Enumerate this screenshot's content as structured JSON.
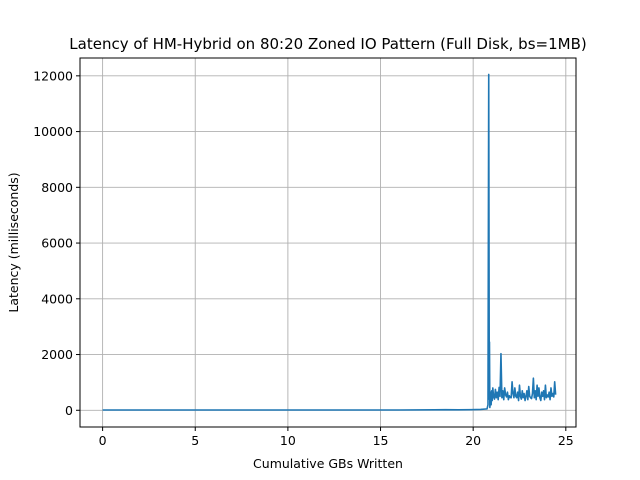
{
  "chart_data": {
    "type": "line",
    "title": "Latency of HM-Hybrid on 80:20 Zoned IO Pattern (Full Disk, bs=1MB)",
    "xlabel": "Cumulative GBs Written",
    "ylabel": "Latency (milliseconds)",
    "xlim": [
      -1.22,
      25.55
    ],
    "ylim": [
      -600,
      12640
    ],
    "xticks": [
      0,
      5,
      10,
      15,
      20,
      25
    ],
    "yticks": [
      0,
      2000,
      4000,
      6000,
      8000,
      10000,
      12000
    ],
    "grid": true,
    "series_color": "#1f77b4",
    "series": [
      {
        "x": [
          0,
          2,
          4,
          6,
          8,
          10,
          12,
          14,
          16,
          17.9,
          18.5,
          19.2,
          19.9,
          20.4,
          20.75,
          20.8,
          20.84,
          20.87,
          20.88,
          20.9,
          20.93,
          20.95,
          20.97,
          21.0,
          21.03,
          21.06,
          21.1,
          21.15,
          21.2,
          21.25,
          21.3,
          21.35,
          21.4,
          21.45,
          21.5,
          21.55,
          21.6,
          21.65,
          21.7,
          21.75,
          21.8,
          21.85,
          21.9,
          21.95,
          22.0,
          22.05,
          22.1,
          22.15,
          22.2,
          22.25,
          22.3,
          22.35,
          22.4,
          22.45,
          22.5,
          22.55,
          22.6,
          22.65,
          22.7,
          22.75,
          22.8,
          22.85,
          22.9,
          22.95,
          23.0,
          23.05,
          23.1,
          23.15,
          23.2,
          23.25,
          23.3,
          23.35,
          23.4,
          23.45,
          23.5,
          23.55,
          23.6,
          23.65,
          23.7,
          23.75,
          23.8,
          23.85,
          23.9,
          23.95,
          24.0,
          24.05,
          24.1,
          24.15,
          24.2,
          24.25,
          24.3,
          24.35,
          24.4,
          24.45
        ],
        "y": [
          10,
          10,
          10,
          10,
          10,
          10,
          10,
          10,
          10,
          15,
          20,
          15,
          20,
          30,
          50,
          200,
          12050,
          400,
          2450,
          100,
          300,
          650,
          200,
          700,
          350,
          800,
          500,
          400,
          750,
          450,
          650,
          380,
          820,
          500,
          2030,
          450,
          700,
          380,
          800,
          550,
          480,
          650,
          380,
          520,
          460,
          450,
          1020,
          600,
          450,
          800,
          500,
          450,
          650,
          350,
          900,
          500,
          400,
          700,
          450,
          600,
          350,
          500,
          700,
          380,
          850,
          500,
          450,
          420,
          600,
          1150,
          450,
          700,
          380,
          900,
          500,
          800,
          450,
          350,
          650,
          500,
          700,
          380,
          900,
          450,
          550,
          480,
          650,
          380,
          800,
          500,
          600,
          480,
          1020,
          560
        ]
      }
    ]
  }
}
